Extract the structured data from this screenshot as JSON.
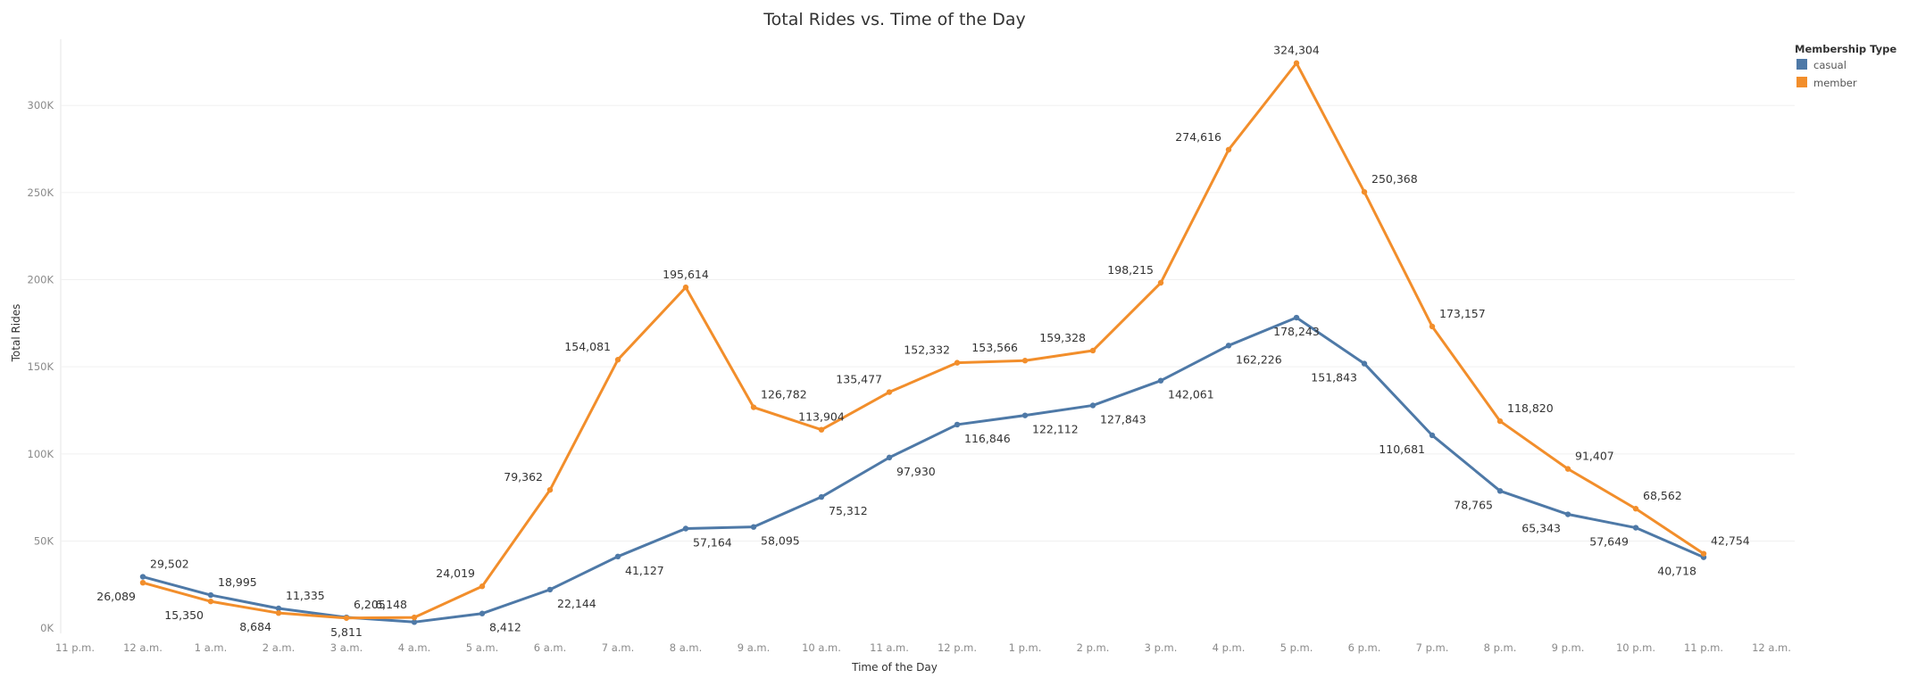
{
  "chart_data": {
    "type": "line",
    "title": "Total Rides vs. Time of the Day",
    "xlabel": "Time of the Day",
    "ylabel": "Total Rides",
    "x_ticks": [
      "11 p.m.",
      "12 a.m.",
      "1 a.m.",
      "2 a.m.",
      "3 a.m.",
      "4 a.m.",
      "5 a.m.",
      "6 a.m.",
      "7 a.m.",
      "8 a.m.",
      "9 a.m.",
      "10 a.m.",
      "11 a.m.",
      "12 p.m.",
      "1 p.m.",
      "2 p.m.",
      "3 p.m.",
      "4 p.m.",
      "5 p.m.",
      "6 p.m.",
      "7 p.m.",
      "8 p.m.",
      "9 p.m.",
      "10 p.m.",
      "11 p.m.",
      "12 a.m."
    ],
    "categories": [
      "12 a.m.",
      "1 a.m.",
      "2 a.m.",
      "3 a.m.",
      "4 a.m.",
      "5 a.m.",
      "6 a.m.",
      "7 a.m.",
      "8 a.m.",
      "9 a.m.",
      "10 a.m.",
      "11 a.m.",
      "12 p.m.",
      "1 p.m.",
      "2 p.m.",
      "3 p.m.",
      "4 p.m.",
      "5 p.m.",
      "6 p.m.",
      "7 p.m.",
      "8 p.m.",
      "9 p.m.",
      "10 p.m.",
      "11 p.m."
    ],
    "y_ticks": [
      "0K",
      "50K",
      "100K",
      "150K",
      "200K",
      "250K",
      "300K"
    ],
    "y_tick_values": [
      0,
      50000,
      100000,
      150000,
      200000,
      250000,
      300000
    ],
    "ylim": [
      -3000,
      338000
    ],
    "grid": true,
    "legend": {
      "title": "Membership Type",
      "position": "top-right"
    },
    "series": [
      {
        "name": "casual",
        "color": "#4e79a7",
        "values": [
          29502,
          18995,
          11335,
          6205,
          3500,
          8412,
          22144,
          41127,
          57164,
          58095,
          75312,
          97930,
          116846,
          122112,
          127843,
          142061,
          162226,
          178243,
          151843,
          110681,
          78765,
          65343,
          57649,
          40718
        ],
        "labels": [
          "29,502",
          "18,995",
          "11,335",
          "6,205",
          "",
          "8,412",
          "22,144",
          "41,127",
          "57,164",
          "58,095",
          "75,312",
          "97,930",
          "116,846",
          "122,112",
          "127,843",
          "142,061",
          "162,226",
          "178,243",
          "151,843",
          "110,681",
          "78,765",
          "65,343",
          "57,649",
          "40,718"
        ]
      },
      {
        "name": "member",
        "color": "#f28e2b",
        "values": [
          26089,
          15350,
          8684,
          5811,
          6148,
          24019,
          79362,
          154081,
          195614,
          126782,
          113904,
          135477,
          152332,
          153566,
          159328,
          198215,
          274616,
          324304,
          250368,
          173157,
          118820,
          91407,
          68562,
          42754
        ],
        "labels": [
          "26,089",
          "15,350",
          "8,684",
          "5,811",
          "6,148",
          "24,019",
          "79,362",
          "154,081",
          "195,614",
          "126,782",
          "113,904",
          "135,477",
          "152,332",
          "153,566",
          "159,328",
          "198,215",
          "274,616",
          "324,304",
          "250,368",
          "173,157",
          "118,820",
          "91,407",
          "68,562",
          "42,754"
        ]
      }
    ]
  }
}
